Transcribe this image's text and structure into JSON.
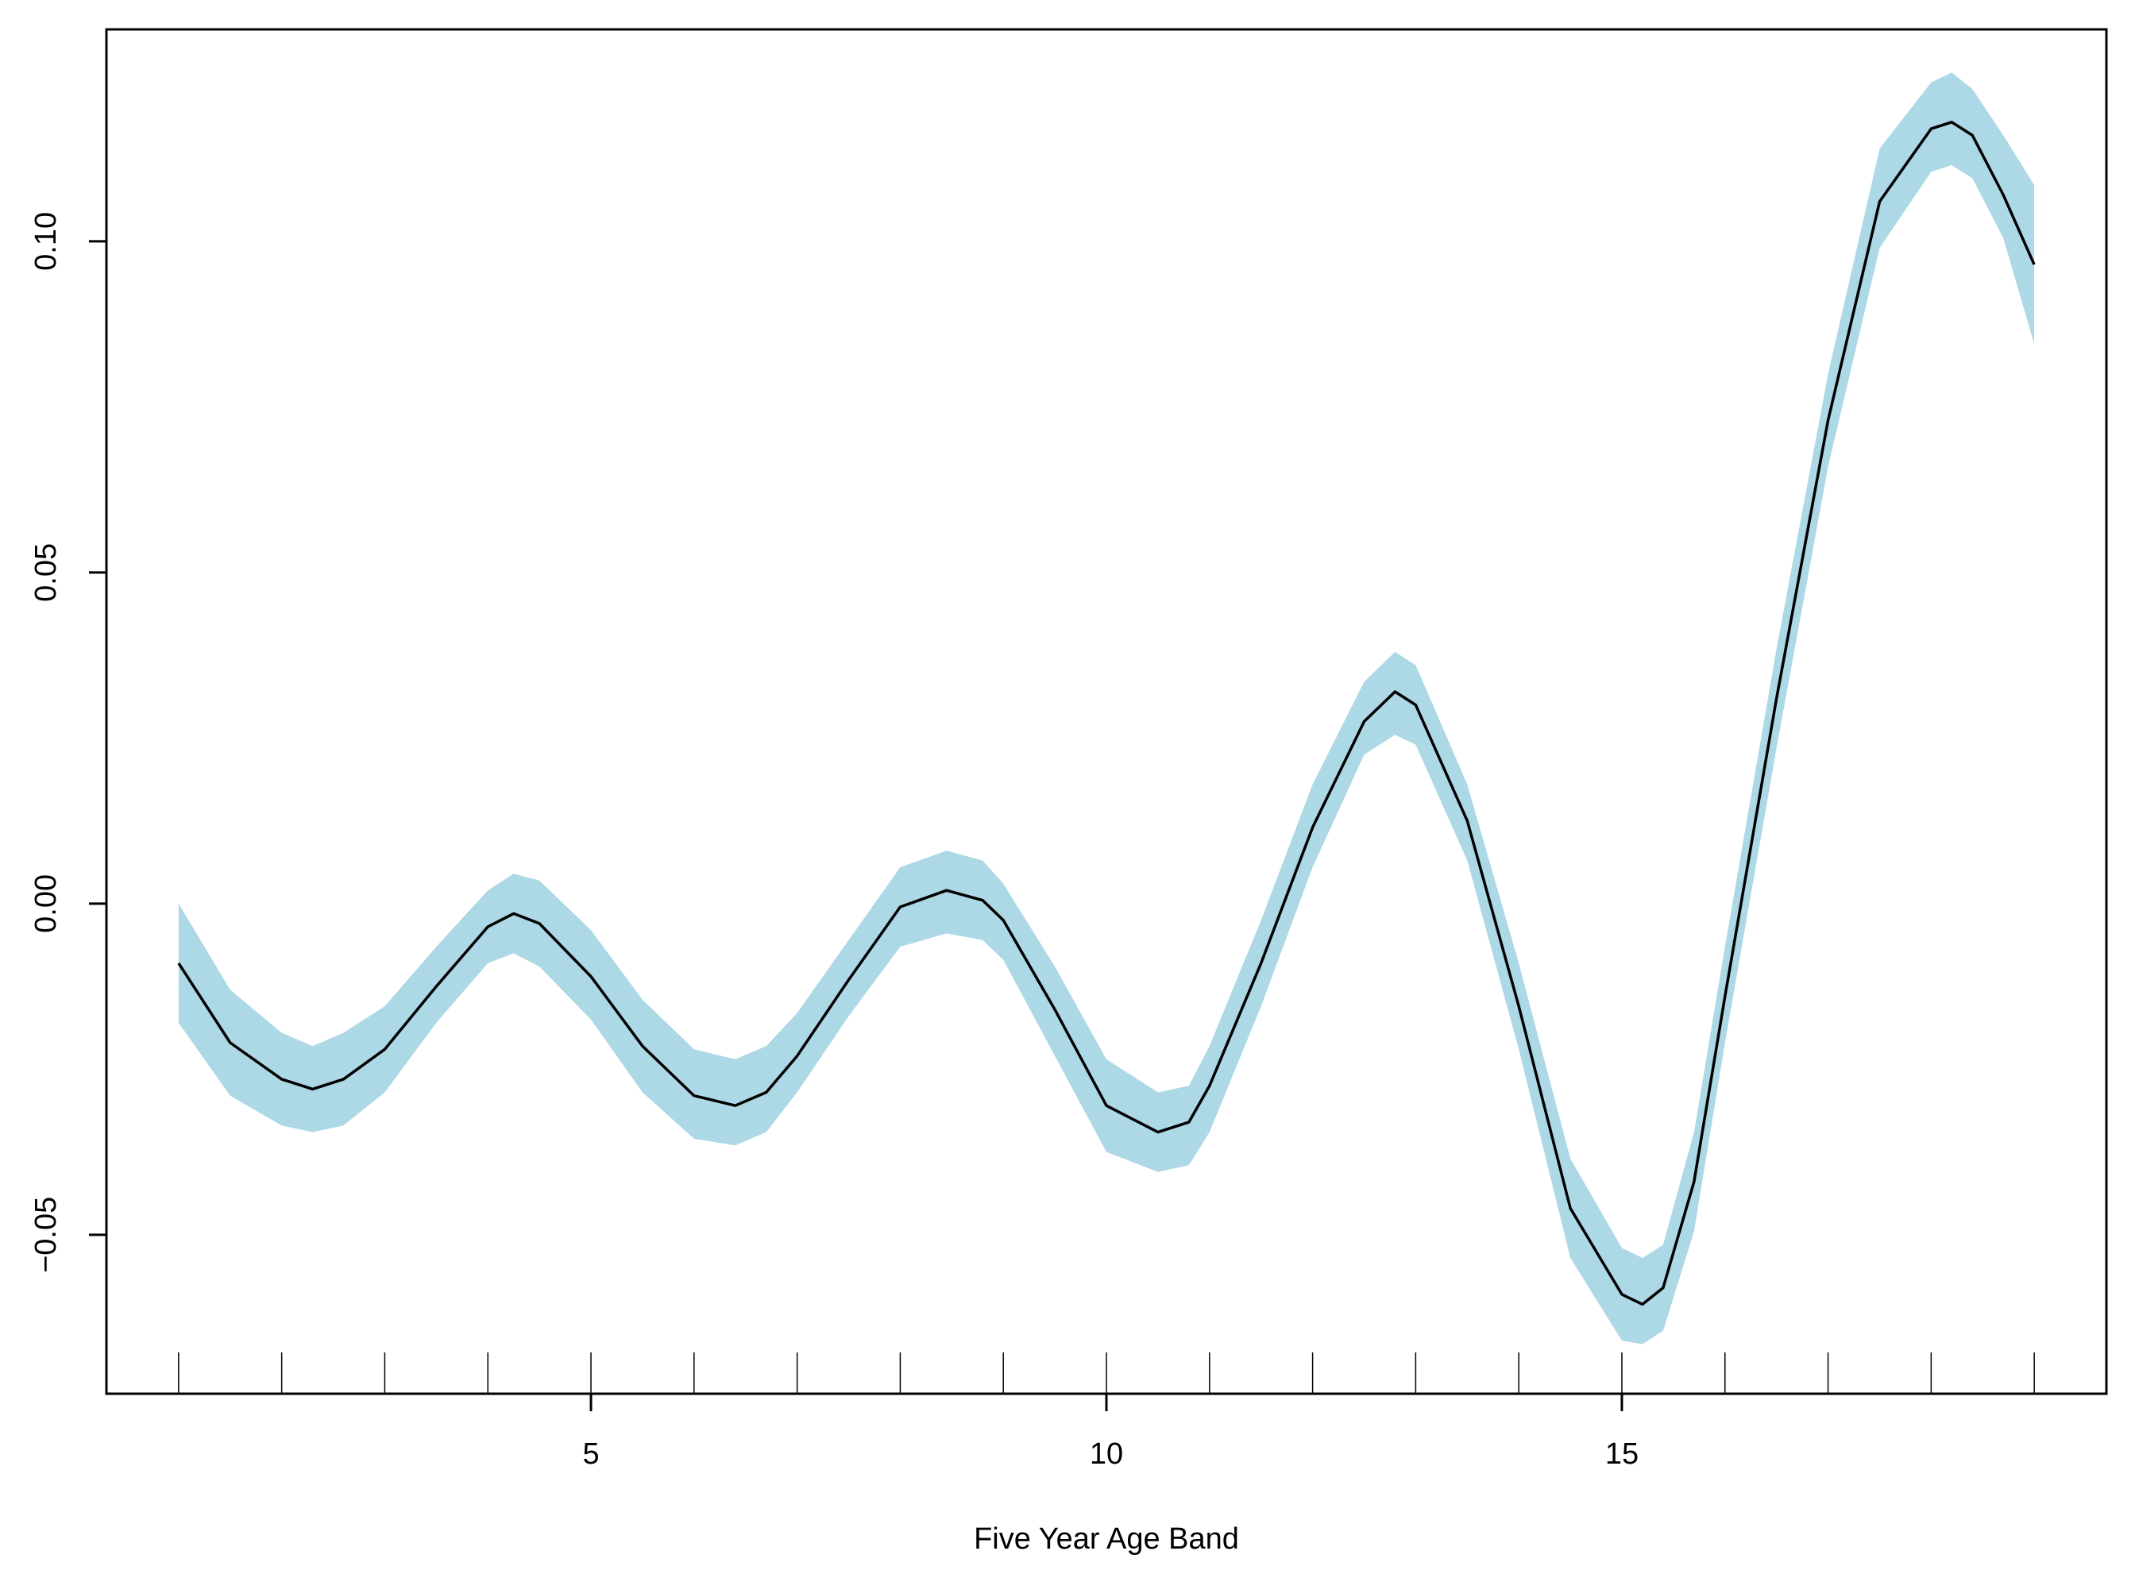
{
  "chart_data": {
    "type": "line",
    "title": "",
    "xlabel": "Five Year Age Band",
    "ylabel": "",
    "xlim": [
      0.3,
      19.7
    ],
    "ylim": [
      -0.074,
      0.132
    ],
    "x_ticks": [
      5,
      10,
      15
    ],
    "x_tick_labels": [
      "5",
      "10",
      "15"
    ],
    "y_ticks": [
      -0.05,
      0.0,
      0.05,
      0.1
    ],
    "y_tick_labels": [
      "−0.05",
      "0.00",
      "0.05",
      "0.10"
    ],
    "rug_x": [
      1,
      2,
      3,
      4,
      5,
      6,
      7,
      8,
      9,
      10,
      11,
      12,
      13,
      14,
      15,
      16,
      17,
      18,
      19
    ],
    "grid": false,
    "legend": "none",
    "colors": {
      "line": "#000000",
      "band": "#add8e6"
    },
    "series": [
      {
        "x": [
          1.0,
          1.5,
          2.0,
          2.3,
          2.6,
          3.0,
          3.5,
          4.0,
          4.25,
          4.5,
          5.0,
          5.5,
          6.0,
          6.4,
          6.7,
          7.0,
          7.5,
          8.0,
          8.45,
          8.8,
          9.0,
          9.5,
          10.0,
          10.5,
          10.8,
          11.0,
          11.5,
          12.0,
          12.5,
          12.8,
          13.0,
          13.5,
          14.0,
          14.5,
          15.0,
          15.2,
          15.4,
          15.7,
          16.0,
          16.5,
          17.0,
          17.5,
          18.0,
          18.2,
          18.4,
          18.7,
          19.0
        ],
        "y": [
          -0.009,
          -0.021,
          -0.0265,
          -0.028,
          -0.0265,
          -0.022,
          -0.0125,
          -0.0035,
          -0.0015,
          -0.003,
          -0.011,
          -0.0215,
          -0.029,
          -0.0305,
          -0.0285,
          -0.023,
          -0.0115,
          -0.0005,
          0.002,
          0.0005,
          -0.0025,
          -0.016,
          -0.0305,
          -0.0345,
          -0.033,
          -0.0275,
          -0.009,
          0.0115,
          0.0275,
          0.032,
          0.03,
          0.0125,
          -0.0155,
          -0.046,
          -0.059,
          -0.0605,
          -0.058,
          -0.042,
          -0.014,
          0.031,
          0.073,
          0.106,
          0.117,
          0.118,
          0.116,
          0.107,
          0.0965
        ],
        "lower": [
          -0.018,
          -0.029,
          -0.0335,
          -0.0345,
          -0.0335,
          -0.0285,
          -0.018,
          -0.009,
          -0.0075,
          -0.0095,
          -0.0175,
          -0.0285,
          -0.0355,
          -0.0365,
          -0.0345,
          -0.0285,
          -0.017,
          -0.0065,
          -0.0045,
          -0.0055,
          -0.0085,
          -0.023,
          -0.0375,
          -0.0405,
          -0.0395,
          -0.0345,
          -0.0155,
          0.0055,
          0.0225,
          0.0255,
          0.024,
          0.0065,
          -0.022,
          -0.0535,
          -0.066,
          -0.0665,
          -0.0645,
          -0.0495,
          -0.021,
          0.0235,
          0.066,
          0.099,
          0.1105,
          0.1115,
          0.1095,
          0.1005,
          0.0845
        ],
        "upper": [
          0.0,
          -0.013,
          -0.0195,
          -0.0215,
          -0.0195,
          -0.0155,
          -0.0065,
          0.002,
          0.0045,
          0.0035,
          -0.004,
          -0.0145,
          -0.022,
          -0.0235,
          -0.0215,
          -0.0165,
          -0.0055,
          0.0055,
          0.008,
          0.0065,
          0.003,
          -0.0095,
          -0.0235,
          -0.0285,
          -0.0275,
          -0.0215,
          -0.0025,
          0.018,
          0.0335,
          0.038,
          0.036,
          0.018,
          -0.009,
          -0.0385,
          -0.052,
          -0.0535,
          -0.0515,
          -0.0345,
          -0.0065,
          0.0385,
          0.08,
          0.114,
          0.124,
          0.1255,
          0.123,
          0.116,
          0.1085
        ]
      }
    ]
  }
}
